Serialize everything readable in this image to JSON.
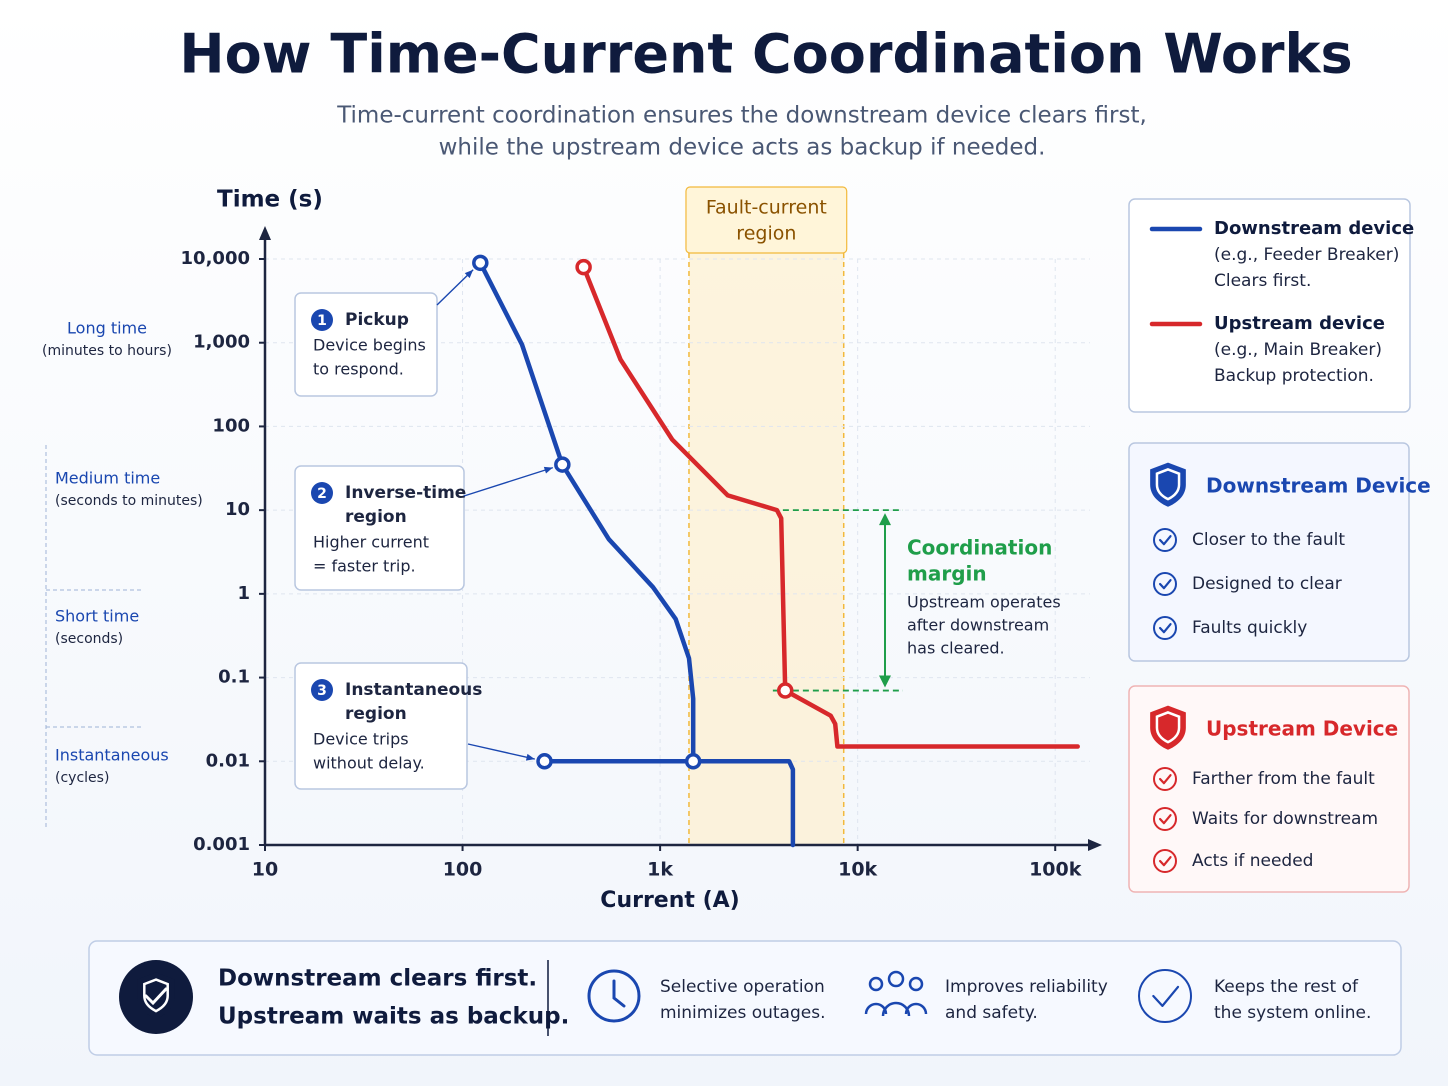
{
  "title": "How Time-Current Coordination Works",
  "subtitle_lines": [
    "Time-current coordination ensures the downstream device clears first,",
    "while the upstream device acts as backup if needed."
  ],
  "chart_data": {
    "type": "line",
    "x_label": "Current (A)",
    "y_label": "Time (s)",
    "xscale": "log",
    "yscale": "log",
    "xlim": [
      10,
      150000
    ],
    "ylim": [
      0.001,
      10000
    ],
    "xticks": [
      10,
      100,
      {
        "value": 1000,
        "label": "1k"
      },
      {
        "value": 10000,
        "label": "10k"
      },
      {
        "value": 100000,
        "label": "100k"
      }
    ],
    "yticks": [
      {
        "value": 10000,
        "label": "10,000"
      },
      {
        "value": 1000,
        "label": "1,000"
      },
      100,
      10,
      1,
      0.1,
      0.01,
      0.001
    ],
    "grid": true,
    "series": [
      {
        "name": "Downstream device",
        "color": "#1a47b0",
        "description": [
          "(e.g., Feeder Breaker)",
          "Clears first."
        ],
        "x": [
          123,
          200,
          320,
          550,
          920,
          1200,
          1400,
          1470,
          1470,
          4500,
          4700,
          4700,
          null,
          260,
          1470
        ],
        "values": [
          9000,
          950,
          35,
          4.5,
          1.2,
          0.5,
          0.17,
          0.056,
          0.01,
          0.01,
          0.008,
          0.001,
          null,
          0.01,
          0.01
        ],
        "markers": [
          true,
          false,
          true,
          false,
          false,
          false,
          false,
          false,
          true,
          false,
          false,
          false,
          false,
          true,
          false
        ]
      },
      {
        "name": "Upstream device",
        "color": "#d7282b",
        "description": [
          "(e.g., Main Breaker)",
          "Backup protection."
        ],
        "x": [
          410,
          630,
          1150,
          2200,
          3900,
          4100,
          4300,
          7300,
          7700,
          7900,
          130000
        ],
        "values": [
          8000,
          630,
          70,
          15,
          10,
          8,
          0.07,
          0.035,
          0.028,
          0.015,
          0.015
        ],
        "markers": [
          true,
          false,
          false,
          false,
          false,
          false,
          true,
          false,
          false,
          false,
          false
        ]
      }
    ],
    "fault_region": {
      "label_lines": [
        "Fault-current",
        "region"
      ],
      "x": [
        1400,
        8500
      ],
      "color": "#f2b93b"
    },
    "coordination_margin": {
      "title_lines": [
        "Coordination",
        "margin"
      ],
      "text_lines": [
        "Upstream operates",
        "after downstream",
        "has cleared."
      ],
      "y": [
        10,
        0.07
      ],
      "color": "#1f9e4a"
    },
    "callouts": [
      {
        "number": 1,
        "title_lines": [
          "Pickup"
        ],
        "text_lines": [
          "Device begins",
          "to respond."
        ]
      },
      {
        "number": 2,
        "title_lines": [
          "Inverse-time",
          "region"
        ],
        "text_lines": [
          "Higher current",
          "= faster trip."
        ]
      },
      {
        "number": 3,
        "title_lines": [
          "Instantaneous",
          "region"
        ],
        "text_lines": [
          "Device trips",
          "without delay."
        ]
      }
    ],
    "time_bands": [
      {
        "name": "Long time",
        "range": "(minutes to hours)"
      },
      {
        "name": "Medium time",
        "range": "(seconds to minutes)"
      },
      {
        "name": "Short time",
        "range": "(seconds)"
      },
      {
        "name": "Instantaneous",
        "range": "(cycles)"
      }
    ]
  },
  "panels": [
    {
      "title": "Downstream Device",
      "color": "#1a47b0",
      "items": [
        "Closer to the fault",
        "Designed to clear",
        "Faults quickly"
      ]
    },
    {
      "title": "Upstream Device",
      "color": "#d7282b",
      "items": [
        "Farther from the fault",
        "Waits for downstream",
        "Acts if needed"
      ]
    }
  ],
  "footer": {
    "headline_lines": [
      "Downstream clears first.",
      "Upstream waits as backup."
    ],
    "items": [
      {
        "lines": [
          "Selective operation",
          "minimizes outages."
        ]
      },
      {
        "lines": [
          "Improves reliability",
          "and safety."
        ]
      },
      {
        "lines": [
          "Keeps the rest of",
          "the system online."
        ]
      }
    ]
  }
}
